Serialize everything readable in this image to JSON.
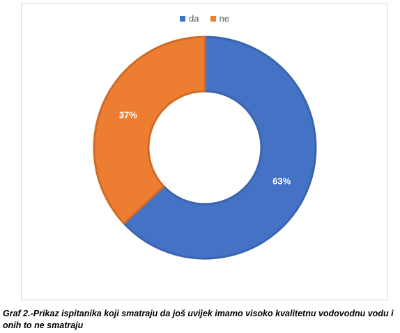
{
  "chart_data": {
    "type": "pie",
    "variant": "doughnut",
    "categories": [
      "da",
      "ne"
    ],
    "values": [
      63,
      37
    ],
    "data_labels": [
      "63%",
      "37%"
    ],
    "colors": [
      "#4472C4",
      "#ED7D31"
    ],
    "legend_position": "top"
  },
  "caption": "Graf 2.-Prikaz ispitanika koji smatraju da još uvijek imamo visoko kvalitetnu vodovodnu vodu i onih to ne smatraju"
}
